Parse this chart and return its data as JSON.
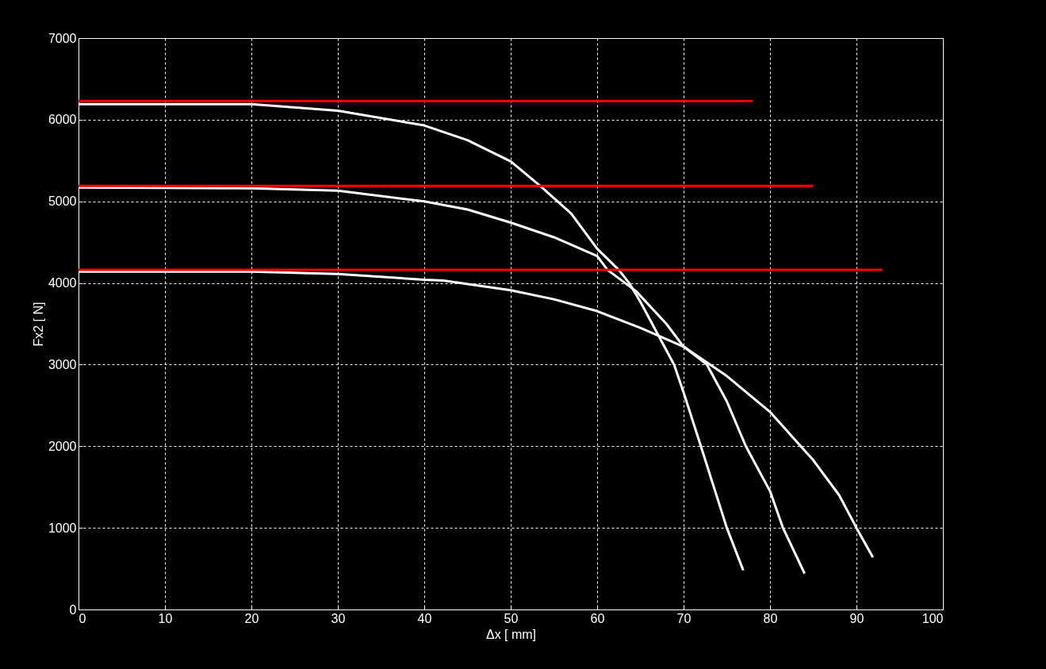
{
  "chart_data": {
    "type": "line",
    "xlabel": "Δx [ mm]",
    "ylabel": "Fx2 [ N]",
    "xlim": [
      0,
      100
    ],
    "ylim": [
      0,
      7000
    ],
    "xticks": [
      0,
      10,
      20,
      30,
      40,
      50,
      60,
      70,
      80,
      90,
      100
    ],
    "yticks": [
      0,
      1000,
      2000,
      3000,
      4000,
      5000,
      6000,
      7000
    ],
    "grid": true,
    "marker": "none",
    "line_style": "solid",
    "series": [
      {
        "color": "#ffffff",
        "x": [
          0,
          20,
          30,
          40,
          45,
          50,
          53.4,
          57,
          60,
          62.5,
          63.7,
          65,
          68.9,
          70,
          72,
          75,
          76.9
        ],
        "values": [
          6190,
          6190,
          6110,
          5930,
          5750,
          5490,
          5190,
          4850,
          4420,
          4160,
          4000,
          3770,
          3000,
          2660,
          2000,
          1000,
          480
        ]
      },
      {
        "color": "#ffffff",
        "x": [
          0,
          20,
          30,
          40,
          45,
          50,
          55,
          60,
          61.2,
          64.5,
          68,
          70,
          72.7,
          75,
          77.2,
          80,
          81.5,
          84
        ],
        "values": [
          5170,
          5160,
          5130,
          5000,
          4900,
          4740,
          4560,
          4330,
          4160,
          3900,
          3500,
          3220,
          3000,
          2550,
          2000,
          1450,
          1000,
          440
        ]
      },
      {
        "color": "#ffffff",
        "x": [
          0,
          20,
          30,
          40,
          42.2,
          50,
          55,
          60,
          65,
          70,
          75,
          80,
          85,
          88,
          90,
          91.9
        ],
        "values": [
          4140,
          4140,
          4110,
          4040,
          4030,
          3910,
          3800,
          3655,
          3450,
          3220,
          2860,
          2420,
          1830,
          1400,
          1000,
          640
        ]
      },
      {
        "color": "#ff0000",
        "x": [
          0,
          78
        ],
        "values": [
          6230,
          6230
        ]
      },
      {
        "color": "#ff0000",
        "x": [
          0,
          85
        ],
        "values": [
          5190,
          5190
        ]
      },
      {
        "color": "#ff0000",
        "x": [
          0,
          93
        ],
        "values": [
          4160,
          4160
        ]
      }
    ]
  }
}
